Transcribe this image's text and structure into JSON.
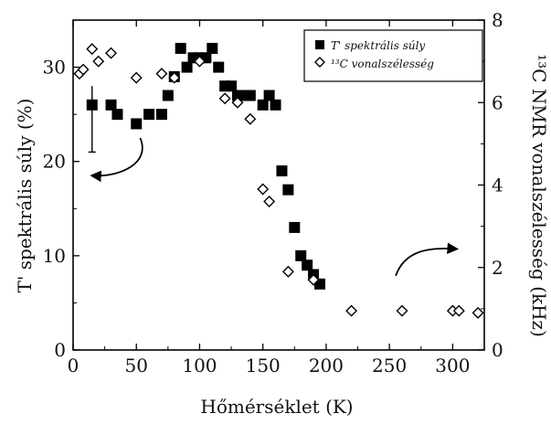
{
  "chart_data": {
    "type": "scatter",
    "xlabel": "Hőmérséklet (K)",
    "ylabel_left": "T' spektrális súly (%)",
    "ylabel_right": "¹³C NMR vonalszélesség (kHz)",
    "xlim": [
      0,
      325
    ],
    "ylim_left": [
      0,
      35
    ],
    "ylim_right": [
      0,
      8
    ],
    "x_ticks": [
      0,
      50,
      100,
      150,
      200,
      250,
      300
    ],
    "y_left_ticks": [
      0,
      10,
      20,
      30
    ],
    "y_right_ticks": [
      0,
      2,
      4,
      6,
      8
    ],
    "grid": false,
    "legend_position": "top-right",
    "series": [
      {
        "name": "T' spektrális súly",
        "axis": "left",
        "marker": "filled-square",
        "points": [
          [
            15,
            26
          ],
          [
            30,
            26
          ],
          [
            35,
            25
          ],
          [
            50,
            24
          ],
          [
            60,
            25
          ],
          [
            70,
            25
          ],
          [
            75,
            27
          ],
          [
            80,
            29
          ],
          [
            85,
            32
          ],
          [
            90,
            30
          ],
          [
            95,
            31
          ],
          [
            100,
            31
          ],
          [
            105,
            31
          ],
          [
            110,
            32
          ],
          [
            115,
            30
          ],
          [
            120,
            28
          ],
          [
            125,
            28
          ],
          [
            130,
            27
          ],
          [
            135,
            27
          ],
          [
            140,
            27
          ],
          [
            150,
            26
          ],
          [
            155,
            27
          ],
          [
            160,
            26
          ],
          [
            165,
            19
          ],
          [
            170,
            17
          ],
          [
            175,
            13
          ],
          [
            180,
            10
          ],
          [
            185,
            9
          ],
          [
            190,
            8
          ],
          [
            195,
            7
          ]
        ],
        "error_bar": {
          "x": 15,
          "y": 26,
          "low": 21,
          "high": 28
        }
      },
      {
        "name": "¹³C vonalszélesség",
        "axis": "right",
        "marker": "open-diamond",
        "points": [
          [
            5,
            6.7
          ],
          [
            8,
            6.8
          ],
          [
            15,
            7.3
          ],
          [
            20,
            7.0
          ],
          [
            30,
            7.2
          ],
          [
            50,
            6.6
          ],
          [
            70,
            6.7
          ],
          [
            80,
            6.6
          ],
          [
            100,
            7.0
          ],
          [
            120,
            6.1
          ],
          [
            130,
            6.0
          ],
          [
            140,
            5.6
          ],
          [
            150,
            3.9
          ],
          [
            155,
            3.6
          ],
          [
            170,
            1.9
          ],
          [
            190,
            1.7
          ],
          [
            220,
            0.95
          ],
          [
            260,
            0.95
          ],
          [
            300,
            0.95
          ],
          [
            305,
            0.95
          ],
          [
            320,
            0.9
          ]
        ]
      }
    ]
  }
}
